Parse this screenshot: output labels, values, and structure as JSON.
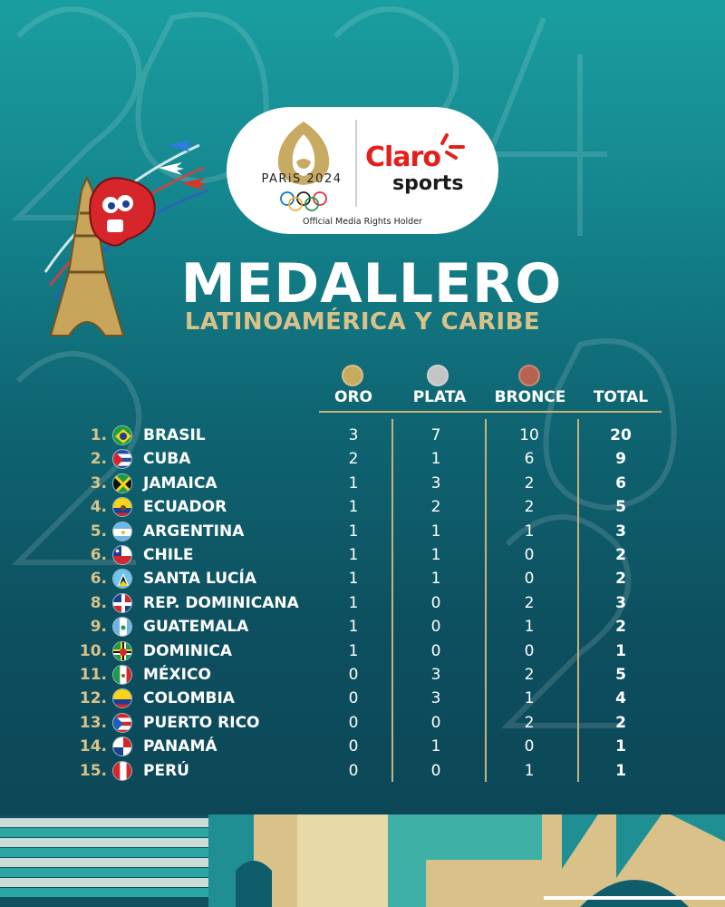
{
  "header": {
    "paris_label": "PARiS 2024",
    "claro_label": "Claro",
    "sports_label": "sports",
    "media_rights": "Official Media Rights Holder"
  },
  "title": {
    "main": "MEDALLERO",
    "sub": "LATINOAMÉRICA Y CARIBE"
  },
  "columns": {
    "gold": "ORO",
    "silver": "PLATA",
    "bronze": "BRONCE",
    "total": "TOTAL"
  },
  "colors": {
    "gold_medal": "#c8ab62",
    "silver_medal": "#c4c4c4",
    "bronze_medal": "#b5634e",
    "accent": "#d9c28a"
  },
  "rows": [
    {
      "rank": "1.",
      "country": "BRASIL",
      "flag": "brazil-flag-icon",
      "gold": "3",
      "silver": "7",
      "bronze": "10",
      "total": "20"
    },
    {
      "rank": "2.",
      "country": "CUBA",
      "flag": "cuba-flag-icon",
      "gold": "2",
      "silver": "1",
      "bronze": "6",
      "total": "9"
    },
    {
      "rank": "3.",
      "country": "JAMAICA",
      "flag": "jamaica-flag-icon",
      "gold": "1",
      "silver": "3",
      "bronze": "2",
      "total": "6"
    },
    {
      "rank": "4.",
      "country": "ECUADOR",
      "flag": "ecuador-flag-icon",
      "gold": "1",
      "silver": "2",
      "bronze": "2",
      "total": "5"
    },
    {
      "rank": "5.",
      "country": "ARGENTINA",
      "flag": "argentina-flag-icon",
      "gold": "1",
      "silver": "1",
      "bronze": "1",
      "total": "3"
    },
    {
      "rank": "6.",
      "country": "CHILE",
      "flag": "chile-flag-icon",
      "gold": "1",
      "silver": "1",
      "bronze": "0",
      "total": "2"
    },
    {
      "rank": "6.",
      "country": "SANTA LUCÍA",
      "flag": "saint-lucia-flag-icon",
      "gold": "1",
      "silver": "1",
      "bronze": "0",
      "total": "2"
    },
    {
      "rank": "8.",
      "country": "REP. DOMINICANA",
      "flag": "dominican-republic-flag-icon",
      "gold": "1",
      "silver": "0",
      "bronze": "2",
      "total": "3"
    },
    {
      "rank": "9.",
      "country": "GUATEMALA",
      "flag": "guatemala-flag-icon",
      "gold": "1",
      "silver": "0",
      "bronze": "1",
      "total": "2"
    },
    {
      "rank": "10.",
      "country": "DOMINICA",
      "flag": "dominica-flag-icon",
      "gold": "1",
      "silver": "0",
      "bronze": "0",
      "total": "1"
    },
    {
      "rank": "11.",
      "country": "MÉXICO",
      "flag": "mexico-flag-icon",
      "gold": "0",
      "silver": "3",
      "bronze": "2",
      "total": "5"
    },
    {
      "rank": "12.",
      "country": "COLOMBIA",
      "flag": "colombia-flag-icon",
      "gold": "0",
      "silver": "3",
      "bronze": "1",
      "total": "4"
    },
    {
      "rank": "13.",
      "country": "PUERTO RICO",
      "flag": "puerto-rico-flag-icon",
      "gold": "0",
      "silver": "0",
      "bronze": "2",
      "total": "2"
    },
    {
      "rank": "14.",
      "country": "PANAMÁ",
      "flag": "panama-flag-icon",
      "gold": "0",
      "silver": "1",
      "bronze": "0",
      "total": "1"
    },
    {
      "rank": "15.",
      "country": "PERÚ",
      "flag": "peru-flag-icon",
      "gold": "0",
      "silver": "0",
      "bronze": "1",
      "total": "1"
    }
  ]
}
